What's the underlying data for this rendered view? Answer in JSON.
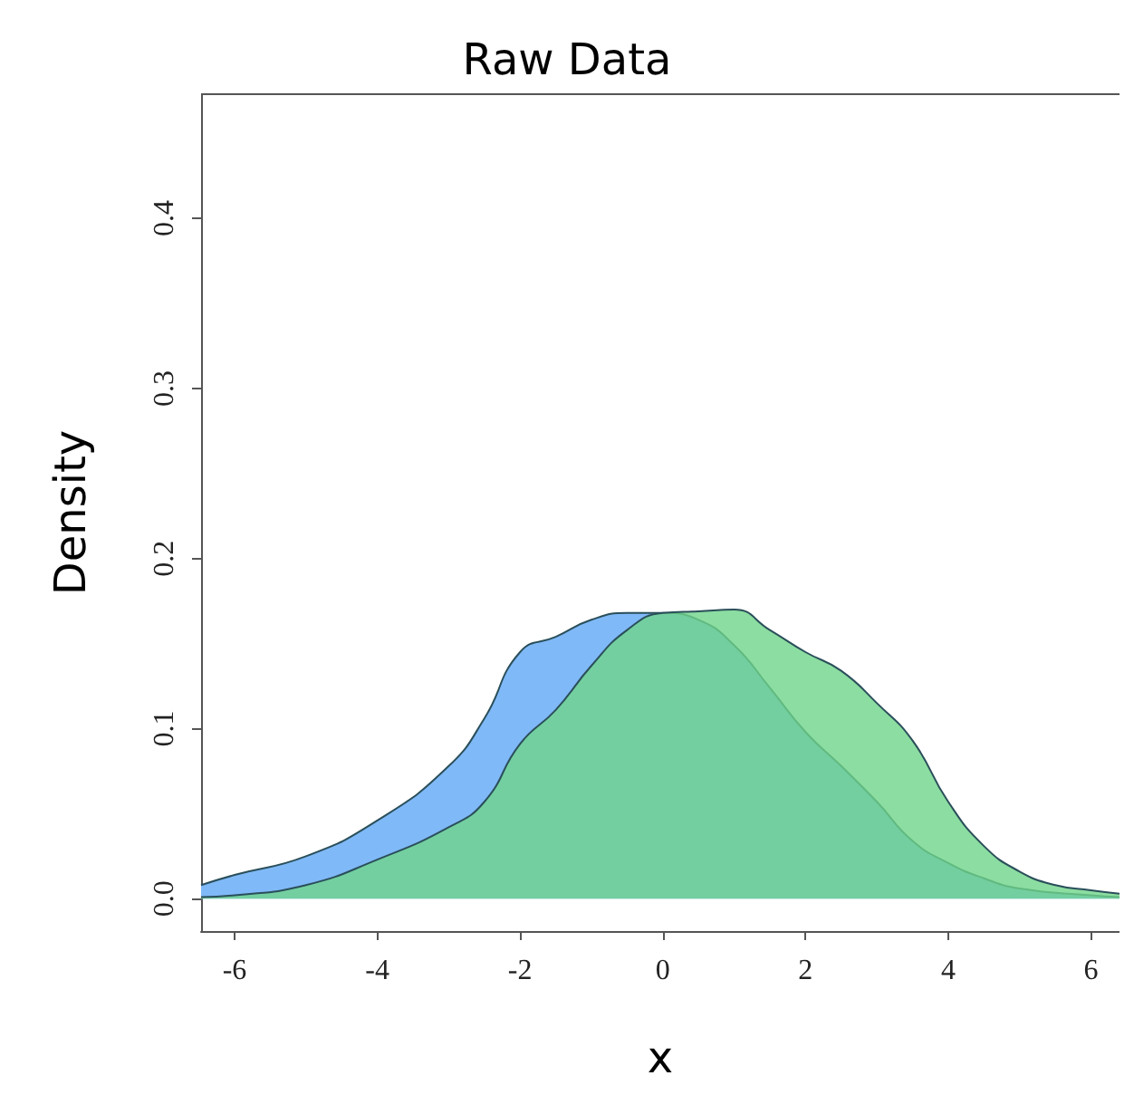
{
  "chart_data": {
    "type": "area",
    "title": "Raw Data",
    "xlabel": "x",
    "ylabel": "Density",
    "xlim": [
      -6.47,
      6.4
    ],
    "ylim": [
      -0.019,
      0.473
    ],
    "xticks": [
      -6,
      -4,
      -2,
      0,
      2,
      4,
      6
    ],
    "yticks": [
      {
        "value": 0,
        "label": "0.0"
      },
      0.1,
      0.2,
      0.3,
      0.4
    ],
    "grid": false,
    "series": [
      {
        "color": "#80b9f8",
        "x": [
          -6.47,
          -6,
          -5,
          -4,
          -3,
          -2.5,
          -2,
          -1.5,
          -1,
          -0.5,
          0,
          0.5,
          1,
          1.5,
          2,
          2.5,
          3,
          3.5,
          4,
          4.5,
          5,
          6,
          6.4
        ],
        "values": [
          0.008,
          0.014,
          0.025,
          0.046,
          0.078,
          0.106,
          0.145,
          0.154,
          0.164,
          0.168,
          0.168,
          0.164,
          0.149,
          0.124,
          0.098,
          0.078,
          0.057,
          0.034,
          0.021,
          0.012,
          0.006,
          0.002,
          0.001
        ]
      },
      {
        "color": "#6fd58a",
        "x": [
          -6.47,
          -6,
          -5,
          -4,
          -3,
          -2.5,
          -2,
          -1.5,
          -1,
          -0.5,
          0,
          0.5,
          1,
          1.5,
          2,
          2.5,
          3,
          3.5,
          4,
          4.5,
          5,
          5.5,
          6,
          6.4
        ],
        "values": [
          0.001,
          0.002,
          0.008,
          0.023,
          0.042,
          0.057,
          0.091,
          0.111,
          0.137,
          0.158,
          0.168,
          0.169,
          0.17,
          0.158,
          0.145,
          0.134,
          0.115,
          0.093,
          0.057,
          0.031,
          0.016,
          0.008,
          0.005,
          0.003
        ]
      }
    ]
  }
}
